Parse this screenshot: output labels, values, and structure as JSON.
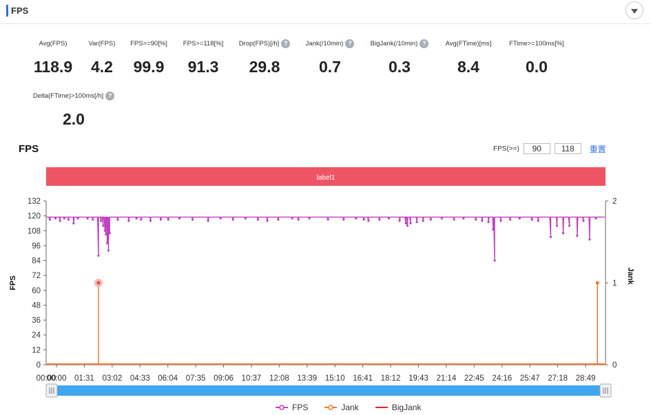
{
  "panel": {
    "title": "FPS"
  },
  "metrics": [
    {
      "label": "Avg(FPS)",
      "value": "118.9",
      "help": false
    },
    {
      "label": "Var(FPS)",
      "value": "4.2",
      "help": false
    },
    {
      "label": "FPS>=90[%]",
      "value": "99.9",
      "help": false
    },
    {
      "label": "FPS>=118[%]",
      "value": "91.3",
      "help": false
    },
    {
      "label": "Drop(FPS)[/h]",
      "value": "29.8",
      "help": true
    },
    {
      "label": "Jank(/10min)",
      "value": "0.7",
      "help": true
    },
    {
      "label": "BigJank(/10min)",
      "value": "0.3",
      "help": true
    },
    {
      "label": "Avg(FTime)[ms]",
      "value": "8.4",
      "help": false
    },
    {
      "label": "FTime>=100ms[%]",
      "value": "0.0",
      "help": false
    },
    {
      "label": "Delta(FTime)>100ms[/h]",
      "value": "2.0",
      "help": true
    }
  ],
  "help_glyph": "?",
  "controls": {
    "fps_threshold_label": "FPS(>=)",
    "threshold_1": "90",
    "threshold_2": "118",
    "reset_label": "重置"
  },
  "colors": {
    "fps": "#c23fbf",
    "jank": "#f47a2b",
    "bigjank": "#e0262a",
    "label_band": "#ee5564",
    "slider": "#3fa5ee",
    "accent": "#2f6fe4"
  },
  "chart_data": {
    "type": "line",
    "title": "FPS",
    "band_label": "label1",
    "xlabel": "",
    "ylabel": "FPS",
    "y2label": "Jank",
    "x_ticks": [
      "00:00",
      "01:31",
      "03:02",
      "04:33",
      "06:04",
      "07:35",
      "09:06",
      "10:37",
      "12:08",
      "13:39",
      "15:10",
      "16:41",
      "18:12",
      "19:43",
      "21:14",
      "22:45",
      "24:16",
      "25:47",
      "27:18",
      "28:49"
    ],
    "x_range_sec": [
      0,
      1796
    ],
    "ylim": [
      0,
      132
    ],
    "y_ticks": [
      0,
      12,
      24,
      36,
      48,
      60,
      72,
      84,
      96,
      108,
      120,
      132
    ],
    "y2lim": [
      0,
      2
    ],
    "y2_ticks": [
      0,
      1,
      2
    ],
    "grid": false,
    "legend_position": "bottom",
    "series": [
      {
        "name": "FPS",
        "axis": "left",
        "baseline": 120,
        "dips": [
          [
            12,
            117
          ],
          [
            30,
            118
          ],
          [
            45,
            116
          ],
          [
            58,
            118
          ],
          [
            72,
            117
          ],
          [
            88,
            114
          ],
          [
            102,
            118
          ],
          [
            133,
            118
          ],
          [
            150,
            117
          ],
          [
            168,
            88
          ],
          [
            176,
            116
          ],
          [
            183,
            112
          ],
          [
            189,
            108
          ],
          [
            192,
            105
          ],
          [
            196,
            98
          ],
          [
            200,
            92
          ],
          [
            204,
            106
          ],
          [
            230,
            117
          ],
          [
            265,
            116
          ],
          [
            290,
            118
          ],
          [
            305,
            117
          ],
          [
            335,
            116
          ],
          [
            368,
            117
          ],
          [
            392,
            117
          ],
          [
            428,
            118
          ],
          [
            470,
            117
          ],
          [
            520,
            116
          ],
          [
            560,
            118
          ],
          [
            600,
            117
          ],
          [
            640,
            118
          ],
          [
            680,
            117
          ],
          [
            710,
            116
          ],
          [
            745,
            117
          ],
          [
            790,
            118
          ],
          [
            810,
            117
          ],
          [
            845,
            118
          ],
          [
            905,
            117
          ],
          [
            955,
            117
          ],
          [
            995,
            118
          ],
          [
            1020,
            117
          ],
          [
            1035,
            116
          ],
          [
            1070,
            117
          ],
          [
            1100,
            118
          ],
          [
            1135,
            116
          ],
          [
            1155,
            114
          ],
          [
            1160,
            112
          ],
          [
            1170,
            114
          ],
          [
            1190,
            115
          ],
          [
            1210,
            116
          ],
          [
            1235,
            117
          ],
          [
            1270,
            118
          ],
          [
            1310,
            117
          ],
          [
            1340,
            118
          ],
          [
            1380,
            117
          ],
          [
            1400,
            116
          ],
          [
            1420,
            115
          ],
          [
            1435,
            109
          ],
          [
            1440,
            84
          ],
          [
            1460,
            116
          ],
          [
            1490,
            117
          ],
          [
            1520,
            118
          ],
          [
            1560,
            117
          ],
          [
            1580,
            116
          ],
          [
            1620,
            103
          ],
          [
            1640,
            112
          ],
          [
            1660,
            106
          ],
          [
            1680,
            112
          ],
          [
            1705,
            104
          ],
          [
            1725,
            116
          ],
          [
            1745,
            101
          ],
          [
            1765,
            118
          ]
        ]
      },
      {
        "name": "Jank",
        "axis": "right",
        "points": [
          [
            168,
            1
          ],
          [
            1770,
            1
          ]
        ]
      },
      {
        "name": "BigJank",
        "axis": "right",
        "points": []
      }
    ]
  }
}
